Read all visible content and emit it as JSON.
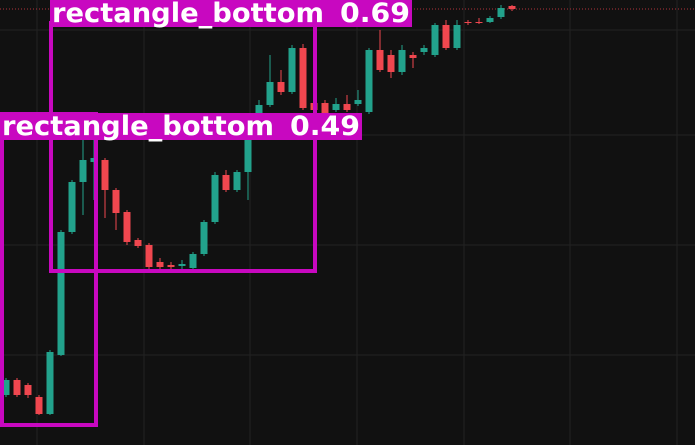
{
  "chart_data": {
    "type": "candlestick",
    "ylim": [
      0,
      445
    ],
    "up_color": "#22a28c",
    "down_color": "#f0474f",
    "open": [
      50,
      65,
      60,
      48,
      31,
      90,
      213,
      263,
      283,
      285,
      255,
      233,
      205,
      200,
      183,
      180,
      179,
      177,
      191,
      223,
      270,
      255,
      273,
      310,
      340,
      363,
      353,
      397,
      342,
      342,
      335,
      341,
      341,
      333,
      395,
      390,
      373,
      390,
      393,
      390,
      420,
      397,
      423,
      423,
      423,
      428,
      439
    ],
    "close": [
      65,
      50,
      50,
      31,
      93,
      213,
      263,
      285,
      287,
      255,
      232,
      203,
      199,
      178,
      178,
      178,
      181,
      191,
      223,
      270,
      255,
      273,
      310,
      340,
      363,
      353,
      397,
      337,
      335,
      325,
      341,
      335,
      345,
      395,
      375,
      373,
      395,
      387,
      397,
      420,
      397,
      420,
      422,
      422,
      427,
      437,
      436
    ],
    "high": [
      67,
      67,
      62,
      50,
      95,
      215,
      265,
      305,
      305,
      287,
      257,
      235,
      207,
      202,
      187,
      183,
      185,
      193,
      225,
      273,
      275,
      275,
      315,
      345,
      390,
      375,
      400,
      401,
      345,
      345,
      347,
      350,
      355,
      397,
      415,
      395,
      400,
      393,
      400,
      422,
      425,
      425,
      425,
      427,
      429,
      440,
      440
    ],
    "low": [
      48,
      48,
      47,
      30,
      30,
      89,
      211,
      230,
      245,
      227,
      215,
      200,
      197,
      176,
      175,
      176,
      176,
      175,
      189,
      221,
      253,
      253,
      245,
      308,
      338,
      350,
      351,
      335,
      295,
      323,
      333,
      333,
      339,
      331,
      373,
      367,
      370,
      377,
      390,
      388,
      395,
      395,
      420,
      421,
      422,
      426,
      434
    ],
    "price_line": 436,
    "annotations": [
      {
        "label": "rectangle_bottom",
        "score": 0.69,
        "color": "#c808c0"
      },
      {
        "label": "rectangle_bottom",
        "score": 0.49,
        "color": "#c808c0"
      }
    ]
  }
}
